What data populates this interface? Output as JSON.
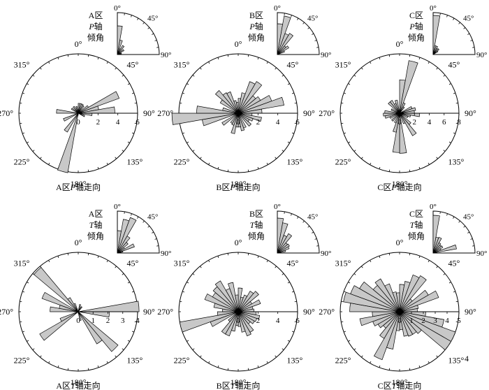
{
  "colors": {
    "petal_fill": "#c8c8c8",
    "petal_stroke": "#000000",
    "axis": "#000000"
  },
  "azimuth_labels": [
    "0°",
    "45°",
    "90°",
    "135°",
    "180°",
    "225°",
    "270°",
    "315°"
  ],
  "dip_labels": [
    "0°",
    "45°",
    "90°"
  ],
  "chart_data": [
    {
      "type": "rose",
      "zone": "A区",
      "axis": "P",
      "axis_italic": "P",
      "title": "A区P轴走向",
      "title_prefix": "A区",
      "title_suffix": "轴走向",
      "dip_label": [
        "A区",
        "P轴",
        "倾角"
      ],
      "radial_ticks": [
        "0",
        "2",
        "4",
        "6"
      ],
      "radial_max": 6,
      "bin_width_deg": 10,
      "strike_bins": [
        {
          "center": 5,
          "value": 1
        },
        {
          "center": 15,
          "value": 1
        },
        {
          "center": 25,
          "value": 1
        },
        {
          "center": 35,
          "value": 0.9
        },
        {
          "center": 55,
          "value": 1.2
        },
        {
          "center": 65,
          "value": 4.4
        },
        {
          "center": 75,
          "value": 2.1
        },
        {
          "center": 85,
          "value": 3.7
        },
        {
          "center": 95,
          "value": 1.4
        },
        {
          "center": 115,
          "value": 0.7
        },
        {
          "center": 195,
          "value": 6.1
        },
        {
          "center": 215,
          "value": 2.2
        },
        {
          "center": 245,
          "value": 1.6
        },
        {
          "center": 275,
          "value": 2.2
        },
        {
          "center": 305,
          "value": 0.8
        },
        {
          "center": 325,
          "value": 0.8
        },
        {
          "center": 345,
          "value": 0.7
        }
      ],
      "dip_max": 6,
      "dip_bins": [
        {
          "center": 5,
          "value": 4.1
        },
        {
          "center": 15,
          "value": 2.1
        },
        {
          "center": 25,
          "value": 0.9
        },
        {
          "center": 35,
          "value": 1.5
        },
        {
          "center": 55,
          "value": 1.1
        },
        {
          "center": 75,
          "value": 0.6
        }
      ]
    },
    {
      "type": "rose",
      "zone": "B区",
      "axis": "P",
      "axis_italic": "P",
      "title": "B区P轴走向",
      "title_prefix": "B区",
      "title_suffix": "轴走向",
      "dip_label": [
        "B区",
        "P轴",
        "倾角"
      ],
      "radial_ticks": [
        "0",
        "2",
        "4",
        "6"
      ],
      "radial_max": 6,
      "bin_width_deg": 10,
      "strike_bins": [
        {
          "center": 5,
          "value": 1.5
        },
        {
          "center": 15,
          "value": 2.1
        },
        {
          "center": 25,
          "value": 3.4
        },
        {
          "center": 35,
          "value": 3.7
        },
        {
          "center": 45,
          "value": 2.3
        },
        {
          "center": 55,
          "value": 2.6
        },
        {
          "center": 65,
          "value": 3.6
        },
        {
          "center": 75,
          "value": 4.7
        },
        {
          "center": 85,
          "value": 2.4
        },
        {
          "center": 95,
          "value": 1.4
        },
        {
          "center": 105,
          "value": 2.4
        },
        {
          "center": 115,
          "value": 1.6
        },
        {
          "center": 125,
          "value": 1.3
        },
        {
          "center": 135,
          "value": 1.7
        },
        {
          "center": 155,
          "value": 1.6
        },
        {
          "center": 165,
          "value": 1.8
        },
        {
          "center": 175,
          "value": 1.4
        },
        {
          "center": 185,
          "value": 1.4
        },
        {
          "center": 195,
          "value": 2.1
        },
        {
          "center": 205,
          "value": 1.3
        },
        {
          "center": 215,
          "value": 1.2
        },
        {
          "center": 235,
          "value": 1.9
        },
        {
          "center": 255,
          "value": 3.7
        },
        {
          "center": 265,
          "value": 6.7
        },
        {
          "center": 275,
          "value": 4.2
        },
        {
          "center": 285,
          "value": 1.6
        },
        {
          "center": 305,
          "value": 2.1
        },
        {
          "center": 315,
          "value": 3.0
        },
        {
          "center": 325,
          "value": 2.4
        },
        {
          "center": 335,
          "value": 2.3
        },
        {
          "center": 345,
          "value": 1.3
        },
        {
          "center": 355,
          "value": 1.1
        }
      ],
      "dip_max": 6,
      "dip_bins": [
        {
          "center": 5,
          "value": 4.4
        },
        {
          "center": 15,
          "value": 5.6
        },
        {
          "center": 25,
          "value": 3.2
        },
        {
          "center": 35,
          "value": 3.5
        },
        {
          "center": 45,
          "value": 1.6
        },
        {
          "center": 55,
          "value": 1.9
        },
        {
          "center": 65,
          "value": 1.1
        }
      ]
    },
    {
      "type": "rose",
      "zone": "C区",
      "axis": "P",
      "axis_italic": "P",
      "title": "C区P轴走向",
      "title_prefix": "C区",
      "title_suffix": "轴走向",
      "dip_label": [
        "C区",
        "P轴",
        "倾角"
      ],
      "radial_ticks": [
        "0",
        "2",
        "4",
        "6",
        "8"
      ],
      "radial_max": 8,
      "bin_width_deg": 10,
      "strike_bins": [
        {
          "center": 5,
          "value": 4.5
        },
        {
          "center": 15,
          "value": 7.2
        },
        {
          "center": 25,
          "value": 1.5
        },
        {
          "center": 35,
          "value": 1.0
        },
        {
          "center": 65,
          "value": 1.8
        },
        {
          "center": 75,
          "value": 2.2
        },
        {
          "center": 85,
          "value": 2.0
        },
        {
          "center": 95,
          "value": 2.7
        },
        {
          "center": 105,
          "value": 1.5
        },
        {
          "center": 115,
          "value": 1.2
        },
        {
          "center": 135,
          "value": 2.0
        },
        {
          "center": 145,
          "value": 3.5
        },
        {
          "center": 155,
          "value": 1.5
        },
        {
          "center": 175,
          "value": 5.4
        },
        {
          "center": 185,
          "value": 5.3
        },
        {
          "center": 195,
          "value": 2.6
        },
        {
          "center": 205,
          "value": 1.4
        },
        {
          "center": 225,
          "value": 1.4
        },
        {
          "center": 245,
          "value": 1.4
        },
        {
          "center": 255,
          "value": 2.0
        },
        {
          "center": 265,
          "value": 2.2
        },
        {
          "center": 275,
          "value": 2.0
        },
        {
          "center": 295,
          "value": 1.2
        },
        {
          "center": 315,
          "value": 2.0
        },
        {
          "center": 325,
          "value": 2.0
        },
        {
          "center": 335,
          "value": 1.4
        },
        {
          "center": 345,
          "value": 1.8
        }
      ],
      "dip_max": 6,
      "dip_bins": [
        {
          "center": 5,
          "value": 5.6
        },
        {
          "center": 15,
          "value": 1.3
        },
        {
          "center": 25,
          "value": 1.3
        },
        {
          "center": 35,
          "value": 1.0
        },
        {
          "center": 45,
          "value": 1.1
        },
        {
          "center": 55,
          "value": 0.8
        }
      ]
    },
    {
      "type": "rose",
      "zone": "A区",
      "axis": "T",
      "axis_italic": "T",
      "title": "A区T轴走向",
      "title_prefix": "A区",
      "title_suffix": "轴走向",
      "dip_label": [
        "A区",
        "T轴",
        "倾角"
      ],
      "radial_ticks": [
        "0",
        "1",
        "2",
        "3",
        "4"
      ],
      "radial_max": 4,
      "bin_width_deg": 10,
      "strike_bins": [
        {
          "center": 15,
          "value": 0.5
        },
        {
          "center": 35,
          "value": 0.4
        },
        {
          "center": 85,
          "value": 4.1
        },
        {
          "center": 95,
          "value": 2.1
        },
        {
          "center": 135,
          "value": 3.5
        },
        {
          "center": 145,
          "value": 2.5
        },
        {
          "center": 165,
          "value": 0.6
        },
        {
          "center": 235,
          "value": 3.0
        },
        {
          "center": 245,
          "value": 1.3
        },
        {
          "center": 275,
          "value": 1.9
        },
        {
          "center": 285,
          "value": 1.3
        },
        {
          "center": 295,
          "value": 2.6
        },
        {
          "center": 315,
          "value": 3.9
        },
        {
          "center": 325,
          "value": 1.1
        },
        {
          "center": 335,
          "value": 0.6
        }
      ],
      "dip_max": 6,
      "dip_bins": [
        {
          "center": 5,
          "value": 3.2
        },
        {
          "center": 15,
          "value": 4.9
        },
        {
          "center": 25,
          "value": 5.4
        },
        {
          "center": 35,
          "value": 2.8
        },
        {
          "center": 45,
          "value": 2.0
        },
        {
          "center": 55,
          "value": 1.2
        },
        {
          "center": 65,
          "value": 2.6
        },
        {
          "center": 75,
          "value": 0.8
        },
        {
          "center": 85,
          "value": 0.5
        }
      ]
    },
    {
      "type": "rose",
      "zone": "B区",
      "axis": "T",
      "axis_italic": "T",
      "title": "B区T轴走向",
      "title_prefix": "B区",
      "title_suffix": "轴走向",
      "dip_label": [
        "B区",
        "T轴",
        "倾角"
      ],
      "radial_ticks": [
        "0",
        "2",
        "4",
        "6"
      ],
      "radial_max": 6,
      "bin_width_deg": 10,
      "strike_bins": [
        {
          "center": 5,
          "value": 2.4
        },
        {
          "center": 15,
          "value": 1.5
        },
        {
          "center": 25,
          "value": 1.8
        },
        {
          "center": 35,
          "value": 2.4
        },
        {
          "center": 45,
          "value": 2.7
        },
        {
          "center": 55,
          "value": 1.6
        },
        {
          "center": 65,
          "value": 2.4
        },
        {
          "center": 75,
          "value": 1.5
        },
        {
          "center": 85,
          "value": 1.6
        },
        {
          "center": 95,
          "value": 1.8
        },
        {
          "center": 105,
          "value": 2.2
        },
        {
          "center": 115,
          "value": 2.0
        },
        {
          "center": 125,
          "value": 1.9
        },
        {
          "center": 135,
          "value": 1.6
        },
        {
          "center": 145,
          "value": 2.4
        },
        {
          "center": 155,
          "value": 2.6
        },
        {
          "center": 165,
          "value": 2.1
        },
        {
          "center": 175,
          "value": 1.5
        },
        {
          "center": 185,
          "value": 1.4
        },
        {
          "center": 195,
          "value": 2.0
        },
        {
          "center": 205,
          "value": 2.6
        },
        {
          "center": 215,
          "value": 2.6
        },
        {
          "center": 225,
          "value": 1.3
        },
        {
          "center": 245,
          "value": 3.0
        },
        {
          "center": 255,
          "value": 6.0
        },
        {
          "center": 265,
          "value": 2.1
        },
        {
          "center": 275,
          "value": 1.6
        },
        {
          "center": 285,
          "value": 2.5
        },
        {
          "center": 295,
          "value": 3.6
        },
        {
          "center": 305,
          "value": 3.0
        },
        {
          "center": 315,
          "value": 3.3
        },
        {
          "center": 325,
          "value": 3.6
        },
        {
          "center": 335,
          "value": 2.5
        },
        {
          "center": 345,
          "value": 3.0
        },
        {
          "center": 355,
          "value": 1.7
        }
      ],
      "dip_max": 6,
      "dip_bins": [
        {
          "center": 5,
          "value": 5.0
        },
        {
          "center": 15,
          "value": 4.4
        },
        {
          "center": 25,
          "value": 2.7
        },
        {
          "center": 35,
          "value": 3.2
        },
        {
          "center": 45,
          "value": 1.9
        },
        {
          "center": 55,
          "value": 2.0
        },
        {
          "center": 65,
          "value": 1.8
        },
        {
          "center": 75,
          "value": 1.2
        }
      ]
    },
    {
      "type": "rose",
      "zone": "C区",
      "axis": "T",
      "axis_italic": "T",
      "title": "C区T轴走向",
      "title_prefix": "C区",
      "title_suffix": "轴走向",
      "dip_label": [
        "C区",
        "T轴",
        "倾角"
      ],
      "radial_ticks": [
        "0",
        "1",
        "2",
        "3",
        "4",
        "5"
      ],
      "radial_max": 5,
      "bin_width_deg": 10,
      "strike_bins": [
        {
          "center": 5,
          "value": 2.3
        },
        {
          "center": 15,
          "value": 2.6
        },
        {
          "center": 25,
          "value": 3.3
        },
        {
          "center": 35,
          "value": 3.5
        },
        {
          "center": 45,
          "value": 1.4
        },
        {
          "center": 55,
          "value": 2.8
        },
        {
          "center": 65,
          "value": 3.5
        },
        {
          "center": 75,
          "value": 1.6
        },
        {
          "center": 85,
          "value": 1.5
        },
        {
          "center": 95,
          "value": 2.2
        },
        {
          "center": 105,
          "value": 3.8
        },
        {
          "center": 115,
          "value": 5.0
        },
        {
          "center": 125,
          "value": 5.0
        },
        {
          "center": 135,
          "value": 2.4
        },
        {
          "center": 145,
          "value": 2.2
        },
        {
          "center": 155,
          "value": 2.2
        },
        {
          "center": 165,
          "value": 2.1
        },
        {
          "center": 175,
          "value": 1.5
        },
        {
          "center": 185,
          "value": 1.6
        },
        {
          "center": 195,
          "value": 3.2
        },
        {
          "center": 205,
          "value": 4.3
        },
        {
          "center": 215,
          "value": 2.6
        },
        {
          "center": 225,
          "value": 1.8
        },
        {
          "center": 235,
          "value": 2.1
        },
        {
          "center": 245,
          "value": 2.4
        },
        {
          "center": 255,
          "value": 3.4
        },
        {
          "center": 265,
          "value": 2.3
        },
        {
          "center": 275,
          "value": 4.2
        },
        {
          "center": 285,
          "value": 4.8
        },
        {
          "center": 295,
          "value": 4.4
        },
        {
          "center": 305,
          "value": 3.9
        },
        {
          "center": 315,
          "value": 2.9
        },
        {
          "center": 325,
          "value": 3.2
        },
        {
          "center": 335,
          "value": 2.5
        },
        {
          "center": 345,
          "value": 1.7
        },
        {
          "center": 355,
          "value": 1.6
        }
      ],
      "dip_max": 6,
      "dip_bins": [
        {
          "center": 5,
          "value": 5.4
        },
        {
          "center": 15,
          "value": 2.3
        },
        {
          "center": 25,
          "value": 2.4
        },
        {
          "center": 35,
          "value": 1.7
        },
        {
          "center": 45,
          "value": 1.5
        },
        {
          "center": 55,
          "value": 1.6
        },
        {
          "center": 65,
          "value": 1.2
        },
        {
          "center": 75,
          "value": 3.4
        }
      ]
    }
  ],
  "footnote": "4"
}
